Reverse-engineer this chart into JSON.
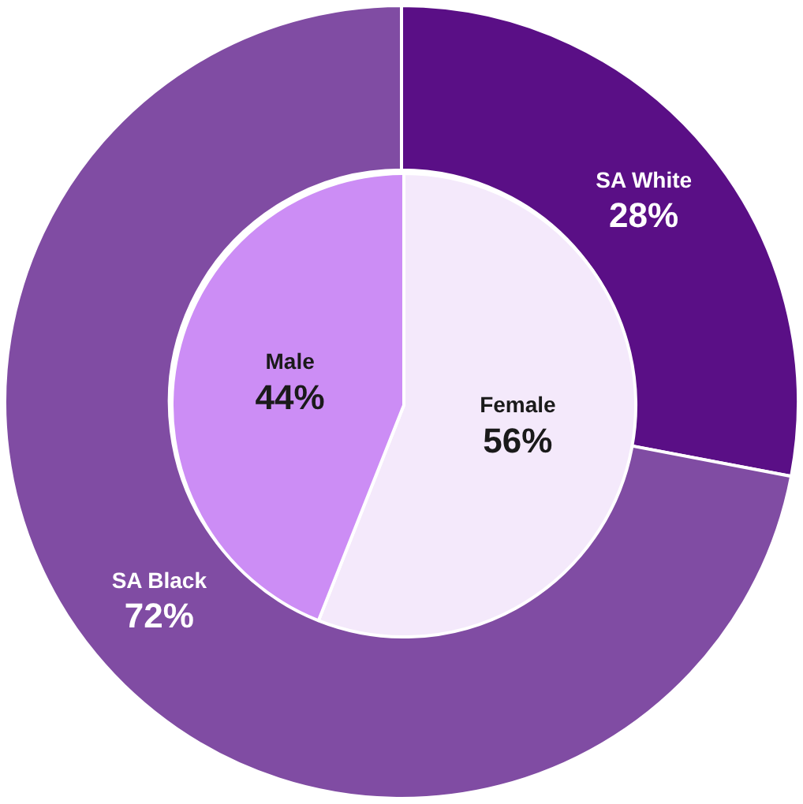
{
  "chart_data": [
    {
      "type": "donut",
      "categories": [
        "SA White",
        "SA Black"
      ],
      "values": [
        28,
        72
      ],
      "value_labels": [
        "28%",
        "72%"
      ],
      "colors": [
        "#5a0f86",
        "#804ca3"
      ]
    },
    {
      "type": "pie",
      "categories": [
        "Female",
        "Male"
      ],
      "values": [
        56,
        44
      ],
      "value_labels": [
        "56%",
        "44%"
      ],
      "colors": [
        "#f4e9fb",
        "#cc8df5"
      ]
    }
  ]
}
